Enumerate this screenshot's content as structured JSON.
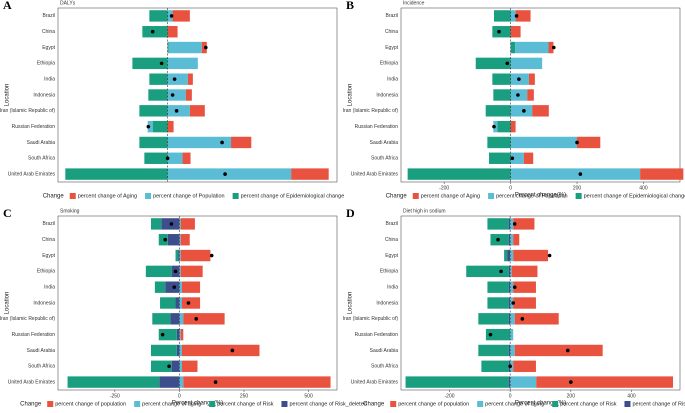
{
  "chart_data": [
    {
      "type": "bar",
      "label": "A",
      "title": "DALYs",
      "ylabel": "Location",
      "legend_title": "Change",
      "categories": [
        "Brazil",
        "China",
        "Egypt",
        "Ethiopia",
        "India",
        "Indonesia",
        "Iran (Islamic Republic of)",
        "Russian Federation",
        "Saudi Arabia",
        "South Africa",
        "United Arab Emirates"
      ],
      "series": [
        {
          "name": "percent change of Aging",
          "color": "#e8523f",
          "values": [
            52,
            30,
            15,
            0,
            15,
            18,
            45,
            18,
            61,
            24,
            113
          ]
        },
        {
          "name": "percent change of Population",
          "color": "#5bbcd6",
          "values": [
            15,
            0,
            100,
            91,
            61,
            55,
            67,
            -15,
            191,
            45,
            372
          ]
        },
        {
          "name": "percent change of Epidemiological change",
          "color": "#1a9e80",
          "values": [
            -55,
            -76,
            3,
            -106,
            -55,
            -58,
            -85,
            -45,
            -85,
            -70,
            -308
          ]
        }
      ],
      "points": {
        "values": [
          12,
          -45,
          115,
          -18,
          21,
          15,
          27,
          -58,
          164,
          0,
          173
        ]
      },
      "xlim": [
        -330,
        510
      ]
    },
    {
      "type": "bar",
      "label": "B",
      "title": "Incidence",
      "ylabel": "Location",
      "xlabel": "Percent change(%)",
      "legend_title": "Change",
      "categories": [
        "Brazil",
        "China",
        "Egypt",
        "Ethiopia",
        "India",
        "Indonesia",
        "Iran (Islamic Republic of)",
        "Russian Federation",
        "Saudi Arabia",
        "South Africa",
        "United Arab Emirates"
      ],
      "series": [
        {
          "name": "percent change of Aging",
          "color": "#e8523f",
          "values": [
            45,
            30,
            15,
            0,
            18,
            20,
            50,
            15,
            70,
            28,
            130
          ]
        },
        {
          "name": "percent change of Population",
          "color": "#5bbcd6",
          "values": [
            15,
            0,
            100,
            95,
            55,
            50,
            65,
            -12,
            200,
            40,
            390
          ]
        },
        {
          "name": "percent change of Epidemiological change",
          "color": "#1a9e80",
          "values": [
            -50,
            -55,
            14,
            -105,
            -55,
            -52,
            -75,
            -40,
            -70,
            -65,
            -310
          ]
        }
      ],
      "points": {
        "values": [
          18,
          -35,
          130,
          -10,
          25,
          22,
          40,
          -50,
          200,
          5,
          210
        ]
      },
      "xlim": [
        -330,
        510
      ],
      "xticks": [
        -200,
        0,
        200,
        400
      ]
    },
    {
      "type": "bar",
      "label": "C",
      "title": "Smoking",
      "ylabel": "Location",
      "xlabel": "Percent change(%)",
      "legend_title": "Change",
      "categories": [
        "Brazil",
        "China",
        "Egypt",
        "Ethiopia",
        "India",
        "Indonesia",
        "Iran (Islamic Republic of)",
        "Russian Federation",
        "Saudi Arabia",
        "South Africa",
        "United Arab Emirates"
      ],
      "series": [
        {
          "name": "percent change of population",
          "color": "#e8523f",
          "values": [
            55,
            35,
            115,
            85,
            70,
            70,
            160,
            10,
            300,
            60,
            570
          ]
        },
        {
          "name": "percent change of aging",
          "color": "#5bbcd6",
          "values": [
            5,
            5,
            5,
            5,
            10,
            10,
            15,
            5,
            10,
            10,
            15
          ]
        },
        {
          "name": "percent change of Risk",
          "color": "#1a9e80",
          "values": [
            -40,
            -35,
            -10,
            -100,
            -40,
            -60,
            -70,
            -70,
            -100,
            -80,
            -355
          ]
        },
        {
          "name": "percent change of Risk_deleted",
          "color": "#3c4e8c",
          "values": [
            -70,
            -45,
            -5,
            -30,
            -55,
            -15,
            -35,
            -10,
            -10,
            -30,
            -78
          ]
        }
      ],
      "points": {
        "values": [
          -31,
          -55,
          125,
          -15,
          -20,
          35,
          65,
          -65,
          205,
          -40,
          140
        ]
      },
      "xlim": [
        -470,
        610
      ],
      "xticks": [
        -250,
        0,
        250,
        500
      ]
    },
    {
      "type": "bar",
      "label": "D",
      "title": "Diet high in sodium",
      "ylabel": "Location",
      "xlabel": "Percent change(%)",
      "legend_title": "Change",
      "categories": [
        "Brazil",
        "China",
        "Egypt",
        "Ethiopia",
        "India",
        "Indonesia",
        "Iran (Islamic Republic of)",
        "Russian Federation",
        "Saudi Arabia",
        "South Africa",
        "United Arab Emirates"
      ],
      "series": [
        {
          "name": "percent change of population",
          "color": "#e8523f",
          "values": [
            70,
            20,
            115,
            85,
            75,
            75,
            145,
            0,
            290,
            75,
            451
          ]
        },
        {
          "name": "percent change of aging",
          "color": "#5bbcd6",
          "values": [
            10,
            10,
            10,
            5,
            10,
            10,
            15,
            10,
            15,
            10,
            86
          ]
        },
        {
          "name": "percent change of Risk",
          "color": "#1a9e80",
          "values": [
            -70,
            -60,
            -10,
            -140,
            -70,
            -70,
            -100,
            -80,
            -100,
            -90,
            -340
          ]
        },
        {
          "name": "percent change of Risk_deleted",
          "color": "#3c4e8c",
          "values": [
            -5,
            -5,
            -10,
            -5,
            -5,
            -5,
            -5,
            0,
            -5,
            -5,
            -5
          ]
        }
      ],
      "points": {
        "values": [
          15,
          -40,
          130,
          -30,
          15,
          10,
          40,
          -65,
          190,
          0,
          200
        ]
      },
      "xlim": [
        -360,
        560
      ],
      "xticks": [
        -200,
        0,
        200,
        400
      ]
    }
  ]
}
